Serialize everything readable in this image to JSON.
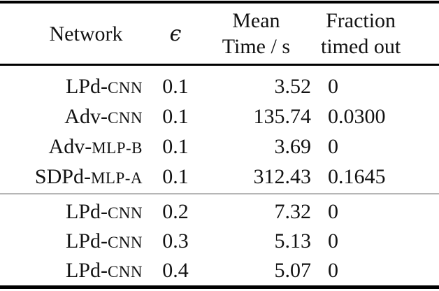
{
  "table": {
    "title_semantic": "verification-timing-table",
    "header": {
      "network": "Network",
      "epsilon": "ϵ",
      "mean_time_line1": "Mean",
      "mean_time_line2": "Time / s",
      "fraction_line1": "Fraction",
      "fraction_line2": "timed out"
    },
    "colors": {
      "background": "#ffffff",
      "text": "#121212",
      "rule_black": "#000000",
      "rule_gray": "#b6b6b6"
    },
    "section1": [
      {
        "name_main": "LPd-",
        "name_sc": "cnn",
        "epsilon": "0.1",
        "mean_time": "3.52",
        "fraction": "0"
      },
      {
        "name_main": "Adv-",
        "name_sc": "cnn",
        "epsilon": "0.1",
        "mean_time": "135.74",
        "fraction": "0.0300"
      },
      {
        "name_main": "Adv-",
        "name_sc": "mlp-b",
        "epsilon": "0.1",
        "mean_time": "3.69",
        "fraction": "0"
      },
      {
        "name_main": "SDPd-",
        "name_sc": "mlp-a",
        "epsilon": "0.1",
        "mean_time": "312.43",
        "fraction": "0.1645"
      }
    ],
    "section2": [
      {
        "name_main": "LPd-",
        "name_sc": "cnn",
        "epsilon": "0.2",
        "mean_time": "7.32",
        "fraction": "0"
      },
      {
        "name_main": "LPd-",
        "name_sc": "cnn",
        "epsilon": "0.3",
        "mean_time": "5.13",
        "fraction": "0"
      },
      {
        "name_main": "LPd-",
        "name_sc": "cnn",
        "epsilon": "0.4",
        "mean_time": "5.07",
        "fraction": "0"
      }
    ]
  },
  "chart_data": {
    "type": "table",
    "columns": [
      "Network",
      "ϵ",
      "Mean Time / s",
      "Fraction timed out"
    ],
    "rows": [
      [
        "LPd-CNN",
        "0.1",
        "3.52",
        "0"
      ],
      [
        "Adv-CNN",
        "0.1",
        "135.74",
        "0.0300"
      ],
      [
        "Adv-MLP-B",
        "0.1",
        "3.69",
        "0"
      ],
      [
        "SDPd-MLP-A",
        "0.1",
        "312.43",
        "0.1645"
      ],
      [
        "LPd-CNN",
        "0.2",
        "7.32",
        "0"
      ],
      [
        "LPd-CNN",
        "0.3",
        "5.13",
        "0"
      ],
      [
        "LPd-CNN",
        "0.4",
        "5.07",
        "0"
      ]
    ]
  }
}
